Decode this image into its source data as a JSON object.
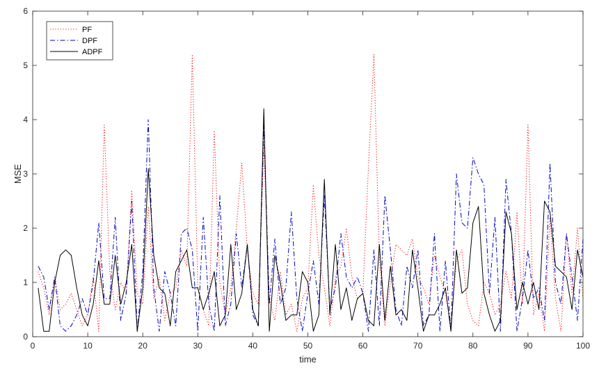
{
  "chart_data": {
    "type": "line",
    "xlabel": "time",
    "ylabel": "MSE",
    "xlim": [
      0,
      100
    ],
    "ylim": [
      0,
      6
    ],
    "xticks": [
      0,
      10,
      20,
      30,
      40,
      50,
      60,
      70,
      80,
      90,
      100
    ],
    "yticks": [
      0,
      1,
      2,
      3,
      4,
      5,
      6
    ],
    "grid": false,
    "legend_placement": "top-left",
    "x": [
      1,
      2,
      3,
      4,
      5,
      6,
      7,
      8,
      9,
      10,
      11,
      12,
      13,
      14,
      15,
      16,
      17,
      18,
      19,
      20,
      21,
      22,
      23,
      24,
      25,
      26,
      27,
      28,
      29,
      30,
      31,
      32,
      33,
      34,
      35,
      36,
      37,
      38,
      39,
      40,
      41,
      42,
      43,
      44,
      45,
      46,
      47,
      48,
      49,
      50,
      51,
      52,
      53,
      54,
      55,
      56,
      57,
      58,
      59,
      60,
      61,
      62,
      63,
      64,
      65,
      66,
      67,
      68,
      69,
      70,
      71,
      72,
      73,
      74,
      75,
      76,
      77,
      78,
      79,
      80,
      81,
      82,
      83,
      84,
      85,
      86,
      87,
      88,
      89,
      90,
      91,
      92,
      93,
      94,
      95,
      96,
      97,
      98,
      99,
      100
    ],
    "series": [
      {
        "name": "PF",
        "color": "#ff0000",
        "style": "dotted",
        "values": [
          1.2,
          0.9,
          0.4,
          1.1,
          0.5,
          0.6,
          0.8,
          0.5,
          0.2,
          0.4,
          1.1,
          0.1,
          3.9,
          1.2,
          0.5,
          1.0,
          0.8,
          2.7,
          0.8,
          0.6,
          2.4,
          0.7,
          1.1,
          0.3,
          0.8,
          0.9,
          1.6,
          1.3,
          5.2,
          0.9,
          0.5,
          0.2,
          3.8,
          1.0,
          0.4,
          0.9,
          2.0,
          3.2,
          1.6,
          0.8,
          0.6,
          3.5,
          0.7,
          0.3,
          1.2,
          0.4,
          0.6,
          0.1,
          0.7,
          0.9,
          2.8,
          1.5,
          0.9,
          0.2,
          1.1,
          1.3,
          2.0,
          1.1,
          0.7,
          0.8,
          3.1,
          5.2,
          1.4,
          0.2,
          1.0,
          1.7,
          1.6,
          1.5,
          1.8,
          1.1,
          0.9,
          0.6,
          1.5,
          1.1,
          0.8,
          0.2,
          1.4,
          1.6,
          0.6,
          0.3,
          0.2,
          1.0,
          0.8,
          0.4,
          0.6,
          1.2,
          0.7,
          2.3,
          0.6,
          3.9,
          0.4,
          0.8,
          0.1,
          2.2,
          0.7,
          0.1,
          1.9,
          0.8,
          2.0,
          0.7
        ]
      },
      {
        "name": "DPF",
        "color": "#0000bf",
        "style": "dash-dot",
        "values": [
          1.3,
          1.1,
          0.5,
          1.1,
          0.2,
          0.1,
          0.2,
          0.4,
          0.7,
          0.4,
          1.0,
          2.1,
          0.7,
          0.7,
          2.2,
          0.3,
          0.8,
          2.5,
          0.1,
          1.2,
          4.0,
          0.9,
          0.1,
          1.2,
          0.8,
          0.2,
          1.9,
          2.0,
          1.6,
          0.1,
          2.2,
          0.6,
          0.1,
          2.6,
          0.2,
          0.6,
          1.9,
          0.9,
          1.7,
          0.4,
          0.2,
          3.9,
          0.6,
          1.8,
          0.6,
          0.9,
          2.3,
          0.7,
          0.1,
          0.8,
          1.4,
          0.6,
          2.6,
          0.5,
          0.9,
          1.9,
          1.1,
          0.9,
          1.1,
          0.8,
          0.1,
          1.6,
          0.2,
          2.6,
          1.6,
          0.5,
          0.2,
          1.3,
          0.9,
          1.6,
          0.2,
          0.4,
          1.9,
          0.1,
          1.4,
          0.1,
          3.0,
          2.1,
          2.0,
          3.3,
          3.0,
          2.8,
          0.8,
          2.2,
          0.1,
          2.9,
          1.9,
          0.1,
          0.7,
          1.6,
          0.7,
          0.9,
          0.3,
          3.2,
          1.0,
          0.6,
          1.9,
          1.1,
          0.3,
          1.8
        ]
      },
      {
        "name": "ADPF",
        "color": "#000000",
        "style": "solid",
        "values": [
          0.9,
          0.1,
          0.1,
          1.0,
          1.5,
          1.6,
          1.5,
          0.9,
          0.4,
          0.2,
          0.6,
          1.4,
          0.6,
          0.6,
          1.5,
          0.6,
          1.0,
          1.7,
          0.1,
          0.9,
          3.1,
          1.5,
          0.9,
          0.8,
          0.2,
          1.2,
          1.4,
          1.6,
          0.9,
          0.9,
          0.5,
          0.8,
          1.2,
          0.2,
          0.4,
          1.7,
          0.5,
          0.8,
          1.7,
          0.5,
          0.2,
          4.2,
          0.1,
          1.5,
          1.0,
          0.3,
          0.4,
          0.4,
          1.2,
          1.0,
          0.1,
          0.4,
          2.9,
          0.4,
          1.7,
          0.5,
          0.9,
          0.3,
          0.7,
          0.8,
          0.3,
          0.2,
          1.7,
          0.3,
          1.3,
          0.4,
          0.5,
          0.3,
          1.6,
          0.9,
          0.1,
          0.4,
          0.4,
          0.6,
          0.9,
          0.1,
          1.6,
          0.8,
          0.9,
          2.1,
          2.4,
          0.8,
          0.4,
          0.1,
          0.3,
          2.3,
          1.9,
          0.5,
          1.0,
          0.6,
          1.0,
          0.5,
          2.5,
          2.3,
          1.3,
          1.2,
          1.1,
          0.5,
          1.6,
          1.1
        ]
      }
    ]
  }
}
